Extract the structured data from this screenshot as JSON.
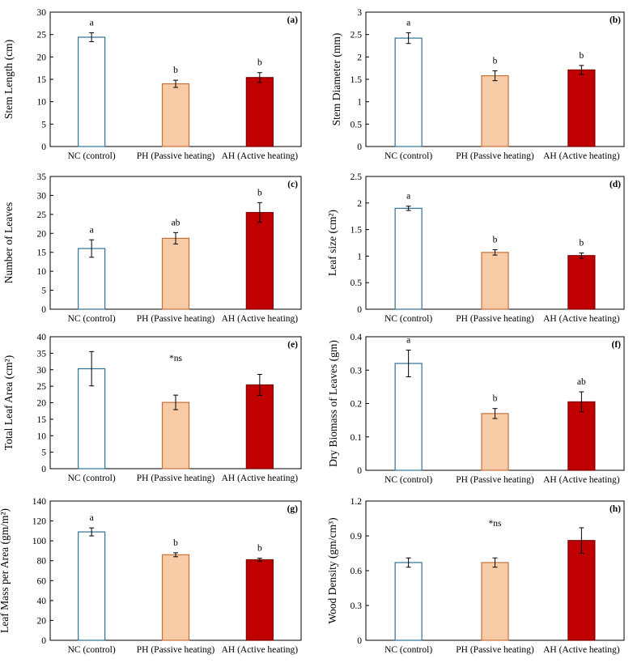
{
  "colors": {
    "nc_fill": "#ffffff",
    "nc_stroke": "#2e7392",
    "ph_fill": "#f8cba7",
    "ph_stroke": "#c8703a",
    "ah_fill": "#c00000",
    "ah_stroke": "#7d0000",
    "axis": "#000000"
  },
  "chart_data": [
    {
      "panel": "(a)",
      "type": "bar",
      "categories": [
        "NC (control)",
        "PH (Passive heating)",
        "AH (Active heating)"
      ],
      "values": [
        24.4,
        14.0,
        15.4
      ],
      "errors": [
        1.0,
        0.8,
        1.1
      ],
      "significance": [
        "a",
        "b",
        "b"
      ],
      "note": "",
      "ylabel": "Stem Length (cm)",
      "ylim": [
        0,
        30
      ],
      "yticks": [
        "0",
        "5",
        "10",
        "15",
        "20",
        "25",
        "30"
      ]
    },
    {
      "panel": "(b)",
      "type": "bar",
      "categories": [
        "NC (control)",
        "PH (Passive heating)",
        "AH (Active heating)"
      ],
      "values": [
        2.42,
        1.58,
        1.71
      ],
      "errors": [
        0.12,
        0.11,
        0.1
      ],
      "significance": [
        "a",
        "b",
        "b"
      ],
      "note": "",
      "ylabel": "Stem Diameter  (mm)",
      "ylim": [
        0,
        3
      ],
      "yticks": [
        "0",
        "0.5",
        "1",
        "1.5",
        "2",
        "2.5",
        "3"
      ]
    },
    {
      "panel": "(c)",
      "type": "bar",
      "categories": [
        "NC (control)",
        "PH (Passive heating)",
        "AH (Active heating)"
      ],
      "values": [
        16.0,
        18.7,
        25.5
      ],
      "errors": [
        2.3,
        1.5,
        2.6
      ],
      "significance": [
        "a",
        "ab",
        "b"
      ],
      "note": "",
      "ylabel": "Number of Leaves",
      "ylim": [
        0,
        35
      ],
      "yticks": [
        "0",
        "5",
        "10",
        "15",
        "20",
        "25",
        "30",
        "35"
      ]
    },
    {
      "panel": "(d)",
      "type": "bar",
      "categories": [
        "NC (control)",
        "PH (Passive heating)",
        "AH (Active heating)"
      ],
      "values": [
        1.9,
        1.07,
        1.01
      ],
      "errors": [
        0.04,
        0.05,
        0.05
      ],
      "significance": [
        "a",
        "b",
        "b"
      ],
      "note": "",
      "ylabel": "Leaf size (cm²)",
      "ylim": [
        0,
        2.5
      ],
      "yticks": [
        "0",
        "0.5",
        "1",
        "1.5",
        "2",
        "2.5"
      ]
    },
    {
      "panel": "(e)",
      "type": "bar",
      "categories": [
        "NC (control)",
        "PH (Passive heating)",
        "AH (Active heating)"
      ],
      "values": [
        30.3,
        20.1,
        25.4
      ],
      "errors": [
        5.2,
        2.2,
        3.2
      ],
      "significance": [
        "",
        "",
        ""
      ],
      "note": "*ns",
      "ylabel": "Total Leaf Area (cm²)",
      "ylim": [
        0,
        40
      ],
      "yticks": [
        "0",
        "5",
        "10",
        "15",
        "20",
        "25",
        "30",
        "35",
        "40"
      ]
    },
    {
      "panel": "(f)",
      "type": "bar",
      "categories": [
        "NC (control)",
        "PH (Passive heating)",
        "AH (Active heating)"
      ],
      "values": [
        0.32,
        0.17,
        0.205
      ],
      "errors": [
        0.04,
        0.015,
        0.03
      ],
      "significance": [
        "a",
        "b",
        "ab"
      ],
      "note": "",
      "ylabel": "Dry Biomass of Leaves (gm)",
      "ylim": [
        0,
        0.4
      ],
      "yticks": [
        "0",
        "0.1",
        "0.2",
        "0.3",
        "0.4"
      ]
    },
    {
      "panel": "(g)",
      "type": "bar",
      "categories": [
        "NC (control)",
        "PH (Passive heating)",
        "AH (Active heating)"
      ],
      "values": [
        109,
        86,
        81
      ],
      "errors": [
        4,
        2,
        1.5
      ],
      "significance": [
        "a",
        "b",
        "b"
      ],
      "note": "",
      "ylabel": "Leaf Mass per Area (gm/m²)",
      "ylim": [
        0,
        140
      ],
      "yticks": [
        "0",
        "20",
        "40",
        "60",
        "80",
        "100",
        "120",
        "140"
      ]
    },
    {
      "panel": "(h)",
      "type": "bar",
      "categories": [
        "NC (control)",
        "PH (Passive heating)",
        "AH (Active heating)"
      ],
      "values": [
        0.67,
        0.67,
        0.86
      ],
      "errors": [
        0.04,
        0.04,
        0.11
      ],
      "significance": [
        "",
        "",
        ""
      ],
      "note": "*ns",
      "ylabel": "Wood Density  (gm/cm³)",
      "ylim": [
        0,
        1.2
      ],
      "yticks": [
        "0",
        "0.3",
        "0.6",
        "0.9",
        "1.2"
      ]
    }
  ]
}
